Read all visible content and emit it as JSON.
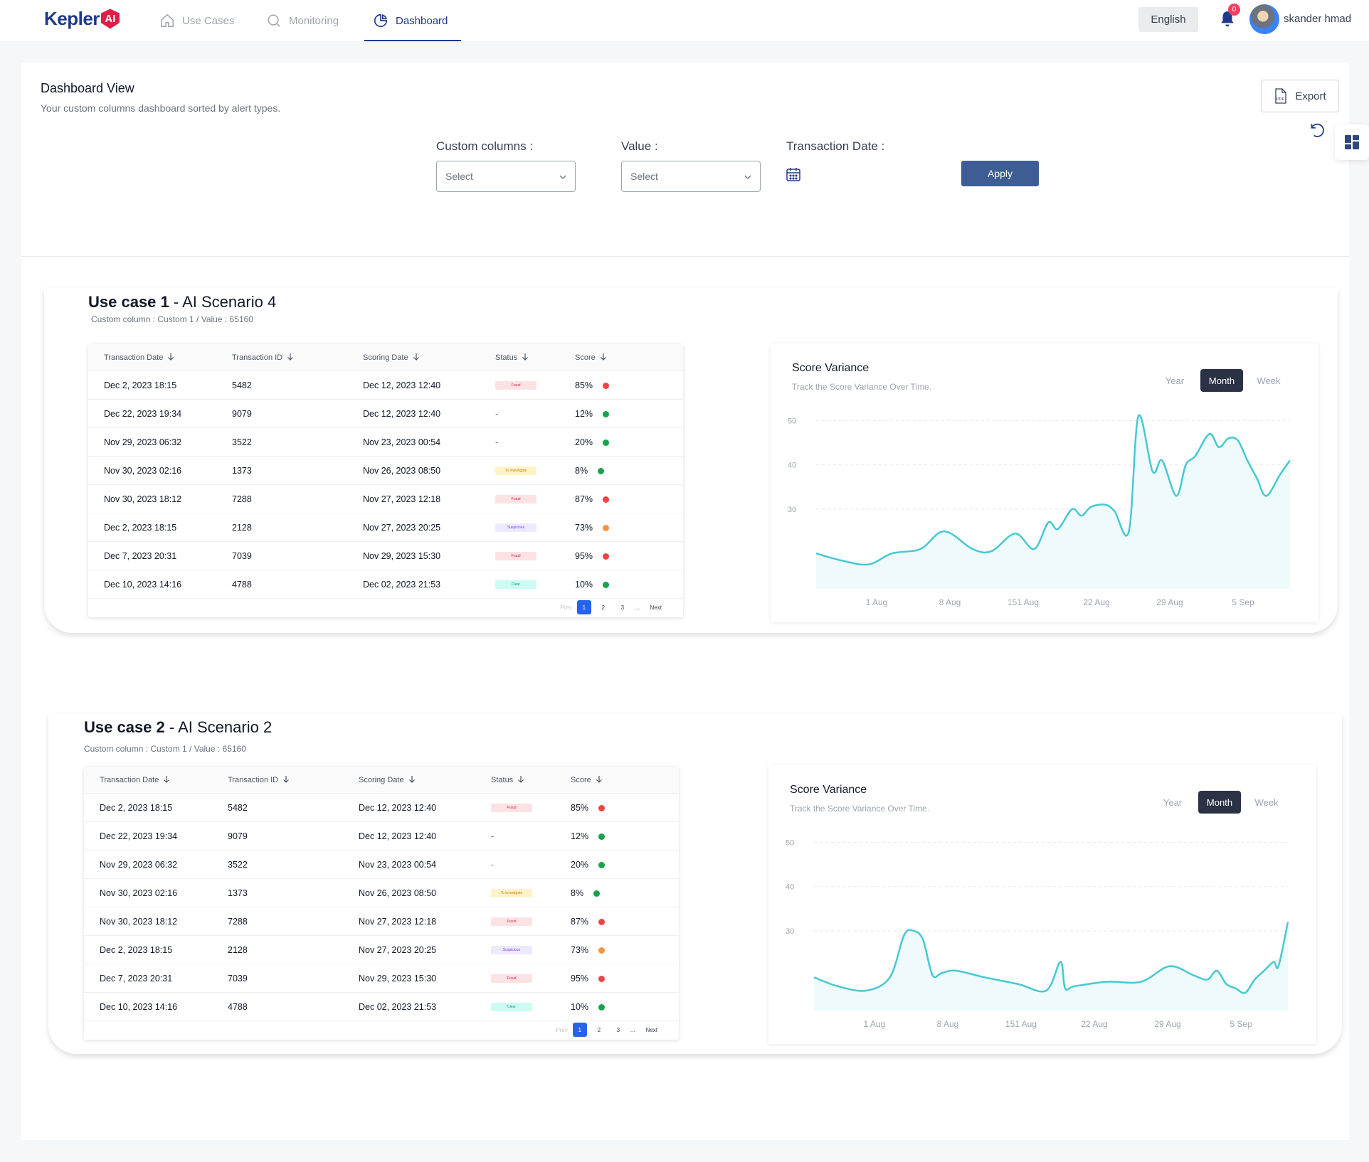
{
  "app": {
    "logo_text": "Kepler",
    "logo_badge": "AI",
    "nav": [
      {
        "label": "Use Cases",
        "icon": "home-icon"
      },
      {
        "label": "Monitoring",
        "icon": "search-icon"
      },
      {
        "label": "Dashboard",
        "icon": "pie-chart-icon"
      }
    ],
    "language": "English",
    "notification_count": "0",
    "user_name": "skander hmad"
  },
  "dashboard": {
    "title": "Dashboard View",
    "subtitle": "Your custom columns dashboard sorted by alert types.",
    "export_label": "Export",
    "pdf_label": "PDF",
    "filters": {
      "custom_columns_label": "Custom columns :",
      "custom_columns_placeholder": "Select",
      "value_label": "Value :",
      "value_placeholder": "Select",
      "transaction_date_label": "Transaction Date :",
      "apply_label": "Apply"
    }
  },
  "table_headers": [
    "Transaction Date",
    "Transaction ID",
    "Scoring Date",
    "Status",
    "Score"
  ],
  "pager": {
    "prev": "Prev",
    "pages": [
      "1",
      "2",
      "3"
    ],
    "ellipsis": "...",
    "next": "Next"
  },
  "status_colors": {
    "Fraud": {
      "bg": "#fde2e4",
      "fg": "#e11d48"
    },
    "To investigate": {
      "bg": "#fef3c7",
      "fg": "#d97706"
    },
    "Suspicious": {
      "bg": "#ede9fe",
      "fg": "#7c3aed"
    },
    "Clear": {
      "bg": "#ccfbf1",
      "fg": "#0d9488"
    }
  },
  "score_colors": {
    "red": "#ef4444",
    "green": "#16a34a",
    "orange": "#fb923c"
  },
  "use_cases": [
    {
      "title_bold": "Use case 1",
      "title_rest": " - AI Scenario 4",
      "subtitle": "Custom column : Custom 1 / Value : 65160",
      "rows": [
        {
          "date": "Dec 2, 2023 18:15",
          "id": "5482",
          "scoring": "Dec 12, 2023 12:40",
          "status": "Fraud",
          "score": "85%",
          "color": "red"
        },
        {
          "date": "Dec 22, 2023 19:34",
          "id": "9079",
          "scoring": "Dec 12, 2023 12:40",
          "status": "-",
          "score": "12%",
          "color": "green"
        },
        {
          "date": "Nov 29, 2023 06:32",
          "id": "3522",
          "scoring": "Nov 23, 2023 00:54",
          "status": "-",
          "score": "20%",
          "color": "green"
        },
        {
          "date": "Nov 30, 2023 02:16",
          "id": "1373",
          "scoring": "Nov 26, 2023 08:50",
          "status": "To investigate",
          "score": "8%",
          "color": "green"
        },
        {
          "date": "Nov 30, 2023 18:12",
          "id": "7288",
          "scoring": "Nov 27, 2023 12:18",
          "status": "Fraud",
          "score": "87%",
          "color": "red"
        },
        {
          "date": "Dec 2, 2023 18:15",
          "id": "2128",
          "scoring": "Nov 27, 2023 20:25",
          "status": "Suspicious",
          "score": "73%",
          "color": "orange"
        },
        {
          "date": "Dec 7, 2023 20:31",
          "id": "7039",
          "scoring": "Nov 29, 2023 15:30",
          "status": "Fraud",
          "score": "95%",
          "color": "red"
        },
        {
          "date": "Dec 10, 2023 14:16",
          "id": "4788",
          "scoring": "Dec 02, 2023 21:53",
          "status": "Clear",
          "score": "10%",
          "color": "green"
        }
      ]
    },
    {
      "title_bold": "Use case 2",
      "title_rest": " - AI Scenario 2",
      "subtitle": "Custom column : Custom 1 / Value : 65160",
      "rows": [
        {
          "date": "Dec 2, 2023 18:15",
          "id": "5482",
          "scoring": "Dec 12, 2023 12:40",
          "status": "Fraud",
          "score": "85%",
          "color": "red"
        },
        {
          "date": "Dec 22, 2023 19:34",
          "id": "9079",
          "scoring": "Dec 12, 2023 12:40",
          "status": "-",
          "score": "12%",
          "color": "green"
        },
        {
          "date": "Nov 29, 2023 06:32",
          "id": "3522",
          "scoring": "Nov 23, 2023 00:54",
          "status": "-",
          "score": "20%",
          "color": "green"
        },
        {
          "date": "Nov 30, 2023 02:16",
          "id": "1373",
          "scoring": "Nov 26, 2023 08:50",
          "status": "To investigate",
          "score": "8%",
          "color": "green"
        },
        {
          "date": "Nov 30, 2023 18:12",
          "id": "7288",
          "scoring": "Nov 27, 2023 12:18",
          "status": "Fraud",
          "score": "87%",
          "color": "red"
        },
        {
          "date": "Dec 2, 2023 18:15",
          "id": "2128",
          "scoring": "Nov 27, 2023 20:25",
          "status": "Suspicious",
          "score": "73%",
          "color": "orange"
        },
        {
          "date": "Dec 7, 2023 20:31",
          "id": "7039",
          "scoring": "Nov 29, 2023 15:30",
          "status": "Fraud",
          "score": "95%",
          "color": "red"
        },
        {
          "date": "Dec 10, 2023 14:16",
          "id": "4788",
          "scoring": "Dec 02, 2023 21:53",
          "status": "Clear",
          "score": "10%",
          "color": "green"
        }
      ]
    }
  ],
  "chart_data": [
    {
      "type": "area",
      "title": "Score Variance",
      "subtitle": "Track the Score Variance Over Time.",
      "range_options": [
        "Year",
        "Month",
        "Week"
      ],
      "selected_range": "Month",
      "x_tick_labels": [
        "1 Aug",
        "8 Aug",
        "151 Aug",
        "22 Aug",
        "29 Aug",
        "5 Sep"
      ],
      "y_ticks": [
        30,
        40,
        50
      ],
      "ylim": [
        12,
        52
      ],
      "color": "#46c8d4",
      "fill": "#eefafb",
      "series": [
        {
          "x": [
            0,
            0.05,
            0.11,
            0.16,
            0.22,
            0.27,
            0.33,
            0.37,
            0.42,
            0.46,
            0.49,
            0.51,
            0.54,
            0.56,
            0.58,
            0.61,
            0.63,
            0.66,
            0.68,
            0.71,
            0.73,
            0.76,
            0.78,
            0.8,
            0.83,
            0.85,
            0.87,
            0.89,
            0.91,
            0.93,
            0.95,
            0.98,
            1.0
          ],
          "values": [
            20,
            18.5,
            17.5,
            20,
            21,
            25,
            21,
            20.5,
            24.5,
            21,
            27,
            25.5,
            30,
            28.5,
            30.5,
            31,
            29.5,
            25,
            51,
            38.5,
            41,
            33,
            40,
            42,
            47,
            44,
            46,
            45.5,
            41,
            37,
            33,
            38,
            41
          ]
        }
      ]
    },
    {
      "type": "area",
      "title": "Score Variance",
      "subtitle": "Track the Score Variance Over Time.",
      "range_options": [
        "Year",
        "Month",
        "Week"
      ],
      "selected_range": "Month",
      "x_tick_labels": [
        "1 Aug",
        "8 Aug",
        "151 Aug",
        "22 Aug",
        "29 Aug",
        "5 Sep"
      ],
      "y_ticks": [
        30,
        40,
        50
      ],
      "ylim": [
        12,
        52
      ],
      "color": "#46c8d4",
      "fill": "#eefafb",
      "series": [
        {
          "x": [
            0,
            0.05,
            0.11,
            0.16,
            0.19,
            0.21,
            0.23,
            0.25,
            0.27,
            0.3,
            0.36,
            0.43,
            0.49,
            0.52,
            0.53,
            0.55,
            0.62,
            0.69,
            0.75,
            0.8,
            0.83,
            0.85,
            0.87,
            0.89,
            0.91,
            0.93,
            0.95,
            0.97,
            0.98,
            1.0
          ],
          "values": [
            19.5,
            17.5,
            16.5,
            19.5,
            29,
            30,
            28,
            20,
            20.5,
            21,
            19.5,
            18,
            16.5,
            23,
            17,
            17.5,
            18.5,
            18.5,
            22,
            20,
            19,
            21,
            18,
            17,
            16,
            19,
            21,
            23,
            22,
            32
          ]
        }
      ]
    }
  ]
}
